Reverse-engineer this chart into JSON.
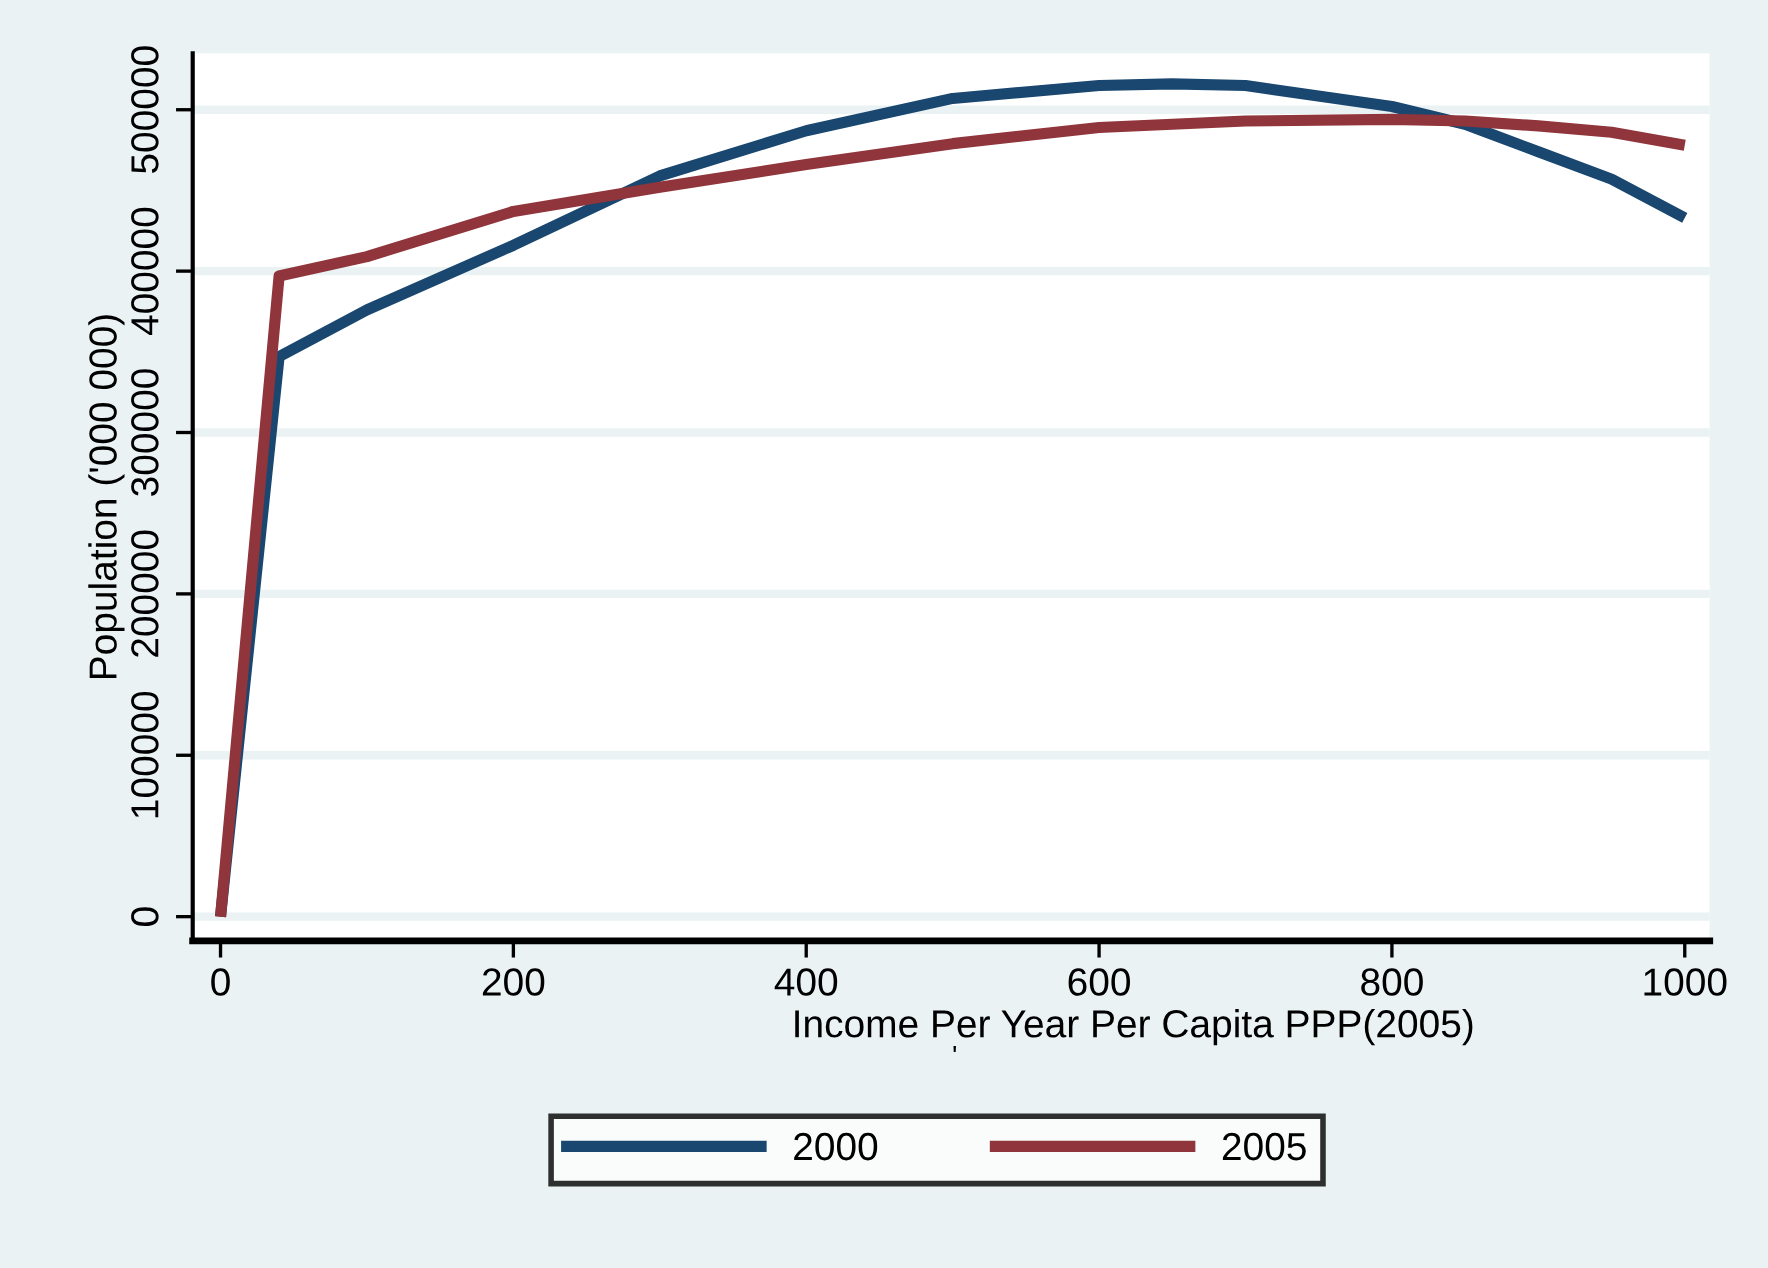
{
  "chart_data": {
    "type": "line",
    "xlabel": "Income Per Year Per Capita PPP(2005)",
    "ylabel": "Population ('000 000)",
    "annotations": [
      "'"
    ],
    "x": [
      0,
      40,
      100,
      200,
      300,
      400,
      500,
      600,
      650,
      700,
      800,
      850,
      900,
      950,
      1000
    ],
    "series": [
      {
        "name": "2000",
        "color": "#1a476f",
        "values": [
          0,
          347000,
          376000,
          416000,
          459000,
          487000,
          507000,
          515000,
          516000,
          515000,
          502000,
          491000,
          474000,
          457000,
          433000
        ]
      },
      {
        "name": "2005",
        "color": "#90353b",
        "values": [
          0,
          397000,
          409000,
          437000,
          452000,
          466000,
          479000,
          489000,
          491000,
          493000,
          494000,
          493000,
          490000,
          486000,
          478000
        ]
      }
    ],
    "xlim": [
      -19,
      1017
    ],
    "ylim": [
      -15000,
      535000
    ],
    "xticks": [
      0,
      200,
      400,
      600,
      800,
      1000
    ],
    "yticks": [
      0,
      100000,
      200000,
      300000,
      400000,
      500000
    ],
    "grid": "y",
    "legend": "bottom"
  }
}
